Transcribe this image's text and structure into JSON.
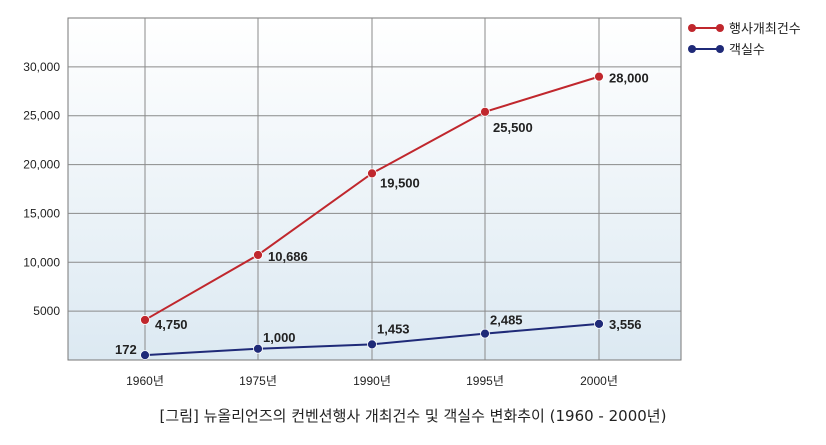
{
  "caption": "[그림] 뉴올리언즈의 컨벤션행사 개최건수 및 객실수 변화추이 (1960 - 2000년)",
  "chart_data": {
    "type": "line",
    "x": [
      "1960년",
      "1975년",
      "1990년",
      "1995년",
      "2000년"
    ],
    "ylim": [
      0,
      35000
    ],
    "yticks": [
      5000,
      10000,
      15000,
      20000,
      25000,
      30000
    ],
    "ytick_labels": [
      "5000",
      "10,000",
      "15,000",
      "20,000",
      "25,000",
      "30,000"
    ],
    "grid": true,
    "legend": "top-right",
    "series": [
      {
        "name": "행사개최건수",
        "color": "#c0272d",
        "values": [
          4750,
          10686,
          19500,
          25500,
          28000
        ],
        "plot_values": [
          4100,
          10750,
          19100,
          25400,
          29000
        ],
        "labels": [
          "4,750",
          "10,686",
          "19,500",
          "25,500",
          "28,000"
        ]
      },
      {
        "name": "객실수",
        "color": "#1f2a78",
        "values": [
          172,
          1000,
          1453,
          2485,
          3556
        ],
        "plot_values": [
          500,
          1150,
          1600,
          2700,
          3700
        ],
        "labels": [
          "172",
          "1,000",
          "1,453",
          "2,485",
          "3,556"
        ]
      }
    ],
    "colors": {
      "plot_bg_top": "#ffffff",
      "plot_bg_bottom": "#dce9f2",
      "grid": "#8a8a8a"
    }
  }
}
